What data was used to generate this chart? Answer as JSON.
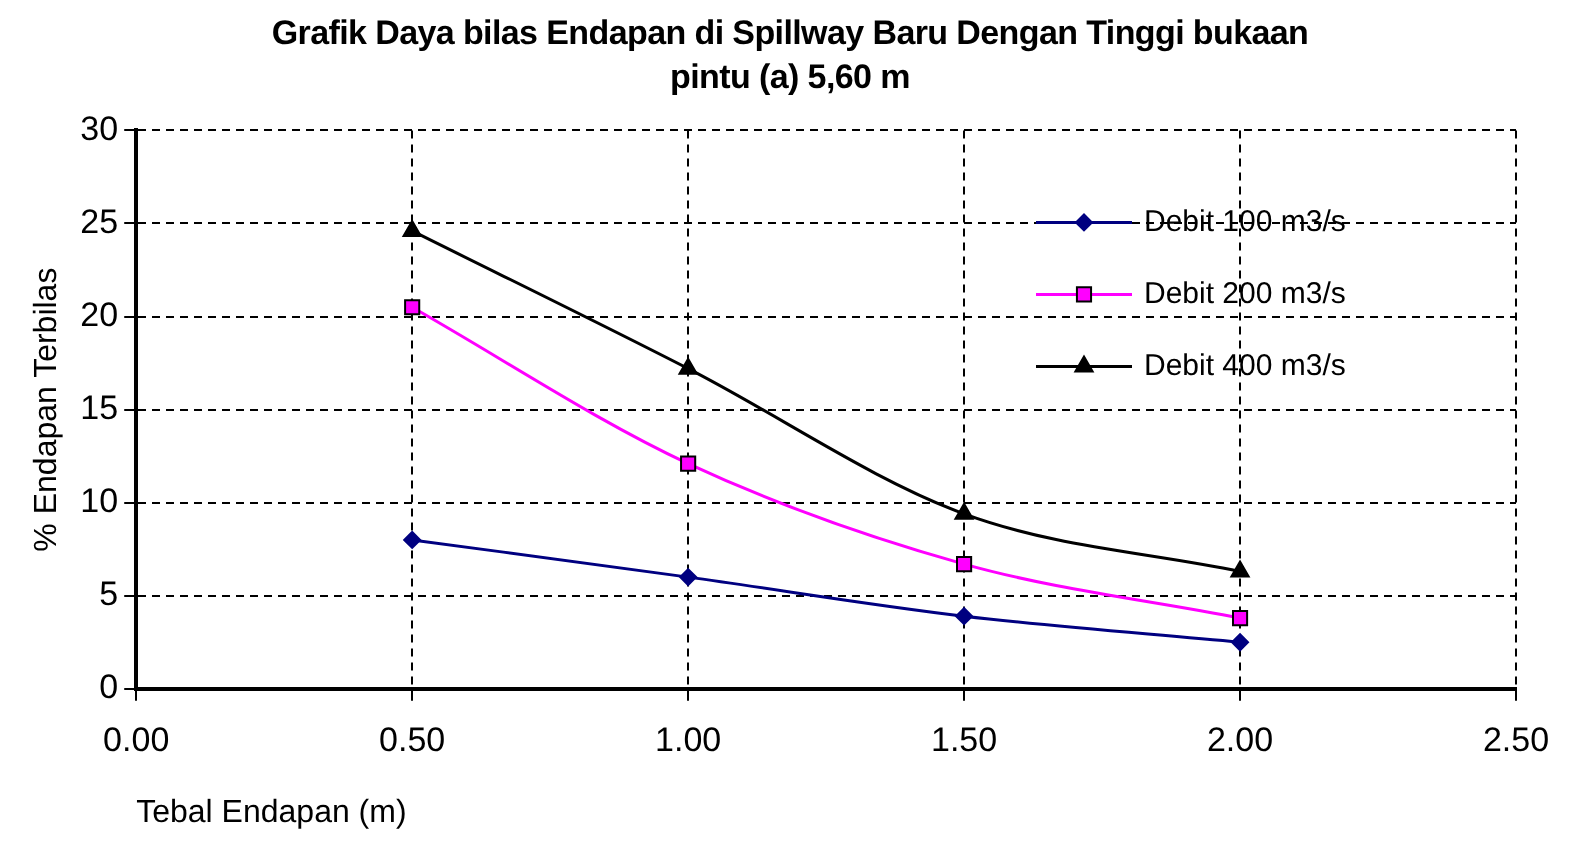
{
  "chart_data": {
    "type": "line",
    "title": "Grafik Daya bilas Endapan di Spillway Baru Dengan Tinggi bukaan pintu (a) 5,60 m",
    "xlabel": "Tebal Endapan (m)",
    "ylabel": "% Endapan Terbilas",
    "x": [
      0.5,
      1.0,
      1.5,
      2.0
    ],
    "series": [
      {
        "name": "Debit 100 m3/s",
        "color": "#000080",
        "marker": "diamond",
        "values": [
          8.0,
          6.0,
          3.9,
          2.5
        ]
      },
      {
        "name": "Debit 200 m3/s",
        "color": "#ff00ff",
        "marker": "square",
        "values": [
          20.5,
          12.1,
          6.7,
          3.8
        ]
      },
      {
        "name": "Debit 400 m3/s",
        "color": "#000000",
        "marker": "triangle",
        "values": [
          24.6,
          17.2,
          9.4,
          6.3
        ]
      }
    ],
    "xlim": [
      0,
      2.5
    ],
    "xticks": [
      {
        "value": 0,
        "label": "0.00"
      },
      {
        "value": 0.5,
        "label": "0.50"
      },
      {
        "value": 1,
        "label": "1.00"
      },
      {
        "value": 1.5,
        "label": "1.50"
      },
      {
        "value": 2,
        "label": "2.00"
      },
      {
        "value": 2.5,
        "label": "2.50"
      }
    ],
    "ylim": [
      0,
      30
    ],
    "yticks": [
      0,
      5,
      10,
      15,
      20,
      25,
      30
    ],
    "grid": true,
    "legend": "top right",
    "line_style": "solid"
  }
}
